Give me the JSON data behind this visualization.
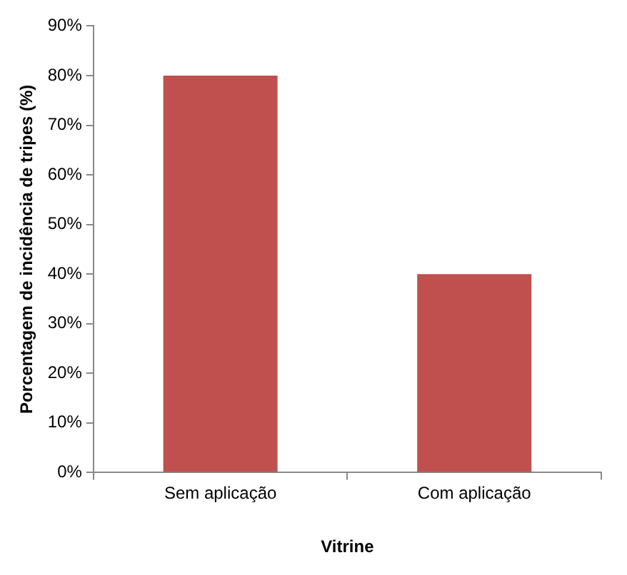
{
  "chart_data": {
    "type": "bar",
    "xlabel": "Vitrine",
    "ylabel": "Porcentagem de incidência de tripes (%)",
    "categories": [
      "Sem aplicação",
      "Com aplicação"
    ],
    "values": [
      80,
      40
    ],
    "color": "#c0504d",
    "ylim": [
      0,
      90
    ],
    "yticks": [
      {
        "value": 0,
        "label": "0%"
      },
      {
        "value": 10,
        "label": "10%"
      },
      {
        "value": 20,
        "label": "20%"
      },
      {
        "value": 30,
        "label": "30%"
      },
      {
        "value": 40,
        "label": "40%"
      },
      {
        "value": 50,
        "label": "50%"
      },
      {
        "value": 60,
        "label": "60%"
      },
      {
        "value": 70,
        "label": "70%"
      },
      {
        "value": 80,
        "label": "80%"
      },
      {
        "value": 90,
        "label": "90%"
      }
    ],
    "grid": false,
    "legend": false
  }
}
